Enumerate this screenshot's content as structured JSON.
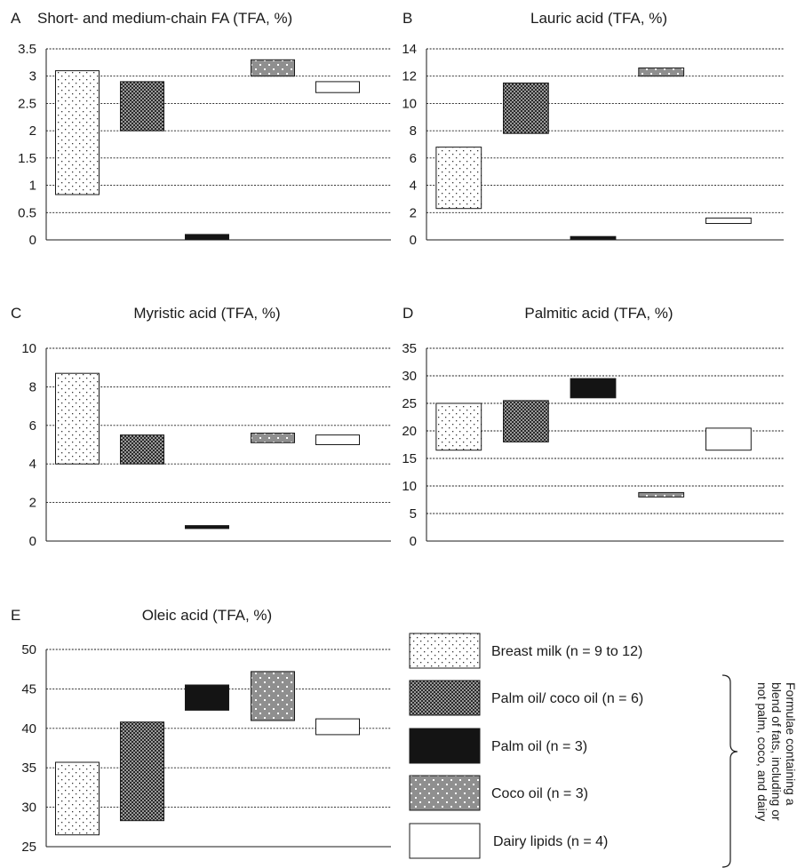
{
  "chart_data": [
    {
      "type": "floating-bar",
      "panel_letter": "A",
      "title": "Short- and medium-chain FA (TFA, %)",
      "ylim": [
        0,
        3.5
      ],
      "yticks": [
        "0",
        "0.5",
        "1",
        "1.5",
        "2",
        "2.5",
        "3",
        "3.5"
      ],
      "grid": true,
      "series": [
        {
          "name": "Breast milk (n = 9 to 12)",
          "range": [
            0.83,
            3.1
          ]
        },
        {
          "name": "Palm oil/ coco oil (n = 6)",
          "range": [
            2.0,
            2.9
          ]
        },
        {
          "name": "Palm oil (n = 3)",
          "range": [
            0.0,
            0.1
          ]
        },
        {
          "name": "Coco oil (n = 3)",
          "range": [
            3.0,
            3.3
          ]
        },
        {
          "name": "Dairy lipids (n = 4)",
          "range": [
            2.7,
            2.9
          ]
        }
      ]
    },
    {
      "type": "floating-bar",
      "panel_letter": "B",
      "title": "Lauric acid (TFA, %)",
      "ylim": [
        0,
        14
      ],
      "yticks": [
        "0",
        "2",
        "4",
        "6",
        "8",
        "10",
        "12",
        "14"
      ],
      "grid": true,
      "series": [
        {
          "name": "Breast milk (n = 9 to 12)",
          "range": [
            2.3,
            6.8
          ]
        },
        {
          "name": "Palm oil/ coco oil (n = 6)",
          "range": [
            7.8,
            11.5
          ]
        },
        {
          "name": "Palm oil (n = 3)",
          "range": [
            0.05,
            0.25
          ]
        },
        {
          "name": "Coco oil (n = 3)",
          "range": [
            12.0,
            12.6
          ]
        },
        {
          "name": "Dairy lipids (n = 4)",
          "range": [
            1.2,
            1.6
          ]
        }
      ]
    },
    {
      "type": "floating-bar",
      "panel_letter": "C",
      "title": "Myristic acid (TFA, %)",
      "ylim": [
        0,
        10
      ],
      "yticks": [
        "0",
        "2",
        "4",
        "6",
        "8",
        "10"
      ],
      "grid": true,
      "series": [
        {
          "name": "Breast milk (n = 9 to 12)",
          "range": [
            4.0,
            8.7
          ]
        },
        {
          "name": "Palm oil/ coco oil (n = 6)",
          "range": [
            4.0,
            5.5
          ]
        },
        {
          "name": "Palm oil (n = 3)",
          "range": [
            0.65,
            0.8
          ]
        },
        {
          "name": "Coco oil (n = 3)",
          "range": [
            5.1,
            5.6
          ]
        },
        {
          "name": "Dairy lipids (n = 4)",
          "range": [
            5.0,
            5.5
          ]
        }
      ]
    },
    {
      "type": "floating-bar",
      "panel_letter": "D",
      "title": "Palmitic acid (TFA, %)",
      "ylim": [
        0,
        35
      ],
      "yticks": [
        "0",
        "5",
        "10",
        "15",
        "20",
        "25",
        "30",
        "35"
      ],
      "grid": true,
      "series": [
        {
          "name": "Breast milk (n = 9 to 12)",
          "range": [
            16.5,
            25.0
          ]
        },
        {
          "name": "Palm oil/ coco oil (n = 6)",
          "range": [
            18.0,
            25.5
          ]
        },
        {
          "name": "Palm oil (n = 3)",
          "range": [
            26.0,
            29.5
          ]
        },
        {
          "name": "Coco oil (n = 3)",
          "range": [
            8.0,
            8.8
          ]
        },
        {
          "name": "Dairy lipids (n = 4)",
          "range": [
            16.5,
            20.5
          ]
        }
      ]
    },
    {
      "type": "floating-bar",
      "panel_letter": "E",
      "title": "Oleic acid (TFA, %)",
      "ylim": [
        25,
        50
      ],
      "yticks": [
        "25",
        "30",
        "35",
        "40",
        "45",
        "50"
      ],
      "grid": true,
      "series": [
        {
          "name": "Breast milk (n = 9 to 12)",
          "range": [
            26.5,
            35.7
          ]
        },
        {
          "name": "Palm oil/ coco oil (n = 6)",
          "range": [
            28.3,
            40.8
          ]
        },
        {
          "name": "Palm oil (n = 3)",
          "range": [
            42.3,
            45.5
          ]
        },
        {
          "name": "Coco oil (n = 3)",
          "range": [
            41.0,
            47.2
          ]
        },
        {
          "name": "Dairy lipids (n = 4)",
          "range": [
            39.2,
            41.2
          ]
        }
      ]
    }
  ],
  "legend": {
    "items": [
      {
        "label": "Breast milk (n = 9 to 12)",
        "pattern": "dots-light"
      },
      {
        "label": "Palm oil/ coco oil (n = 6)",
        "pattern": "checker-dark"
      },
      {
        "label": "Palm oil (n = 3)",
        "pattern": "solid-black"
      },
      {
        "label": "Coco oil (n = 3)",
        "pattern": "dots-grey"
      },
      {
        "label": "Dairy lipids (n = 4)",
        "pattern": "white"
      }
    ],
    "bracket_lines": [
      "Formulae containing a",
      "blend of fats, including or",
      "not palm, coco, and dairy"
    ]
  }
}
